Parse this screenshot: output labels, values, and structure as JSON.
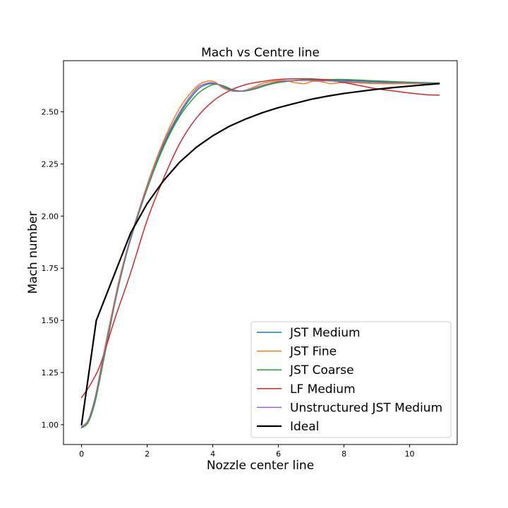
{
  "chart_data": {
    "type": "line",
    "title": "Mach vs Centre line",
    "xlabel": "Nozzle center line",
    "ylabel": "Mach number",
    "xlim": [
      -0.55,
      11.45
    ],
    "ylim": [
      0.905,
      2.745
    ],
    "xticks": [
      0,
      2,
      4,
      6,
      8,
      10
    ],
    "yticks": [
      1.0,
      1.25,
      1.5,
      1.75,
      2.0,
      2.25,
      2.5
    ],
    "ytick_labels": [
      "1.00",
      "1.25",
      "1.50",
      "1.75",
      "2.00",
      "2.25",
      "2.50"
    ],
    "grid": false,
    "legend_position": "lower-right",
    "series": [
      {
        "name": "JST Medium",
        "color": "#1f77b4",
        "width": 1.5,
        "x": [
          0,
          0.2,
          0.4,
          0.6,
          0.8,
          1.0,
          1.2,
          1.5,
          2.0,
          2.5,
          3.0,
          3.5,
          3.8,
          4.0,
          4.2,
          4.5,
          4.8,
          5.0,
          5.3,
          5.6,
          6.0,
          6.5,
          7.0,
          7.5,
          8.0,
          8.5,
          9.0,
          10.0,
          10.9
        ],
        "y": [
          0.99,
          1.02,
          1.12,
          1.27,
          1.43,
          1.58,
          1.72,
          1.9,
          2.14,
          2.34,
          2.49,
          2.6,
          2.63,
          2.635,
          2.63,
          2.61,
          2.6,
          2.6,
          2.615,
          2.63,
          2.64,
          2.65,
          2.652,
          2.652,
          2.65,
          2.648,
          2.645,
          2.64,
          2.636
        ]
      },
      {
        "name": "JST Fine",
        "color": "#ff7f0e",
        "width": 1.5,
        "x": [
          0,
          0.2,
          0.4,
          0.6,
          0.8,
          1.0,
          1.2,
          1.5,
          2.0,
          2.5,
          3.0,
          3.5,
          3.8,
          3.95,
          4.1,
          4.3,
          4.6,
          4.9,
          5.2,
          5.5,
          5.8,
          6.2,
          6.5,
          6.8,
          7.0,
          7.3,
          7.6,
          8.0,
          9.0,
          10.0,
          10.9
        ],
        "y": [
          0.99,
          1.02,
          1.12,
          1.28,
          1.44,
          1.59,
          1.73,
          1.9,
          2.15,
          2.36,
          2.52,
          2.62,
          2.645,
          2.648,
          2.64,
          2.615,
          2.6,
          2.6,
          2.615,
          2.635,
          2.645,
          2.65,
          2.64,
          2.635,
          2.645,
          2.645,
          2.635,
          2.64,
          2.635,
          2.635,
          2.635
        ]
      },
      {
        "name": "JST Coarse",
        "color": "#2ca02c",
        "width": 1.5,
        "x": [
          0,
          0.2,
          0.4,
          0.6,
          0.8,
          1.0,
          1.2,
          1.5,
          2.0,
          2.5,
          3.0,
          3.5,
          3.8,
          4.0,
          4.2,
          4.4,
          4.7,
          5.0,
          5.3,
          5.6,
          6.0,
          6.5,
          7.0,
          7.5,
          8.0,
          8.5,
          9.0,
          10.0,
          10.9
        ],
        "y": [
          0.985,
          1.01,
          1.1,
          1.25,
          1.41,
          1.57,
          1.71,
          1.89,
          2.13,
          2.33,
          2.48,
          2.58,
          2.615,
          2.63,
          2.63,
          2.62,
          2.6,
          2.6,
          2.61,
          2.625,
          2.64,
          2.65,
          2.655,
          2.655,
          2.655,
          2.652,
          2.648,
          2.642,
          2.638
        ]
      },
      {
        "name": "LF Medium",
        "color": "#d62728",
        "width": 1.5,
        "x": [
          0,
          0.3,
          0.6,
          1.0,
          1.5,
          2.0,
          2.5,
          3.0,
          3.5,
          4.0,
          4.5,
          5.0,
          5.5,
          6.0,
          6.5,
          7.0,
          7.5,
          8.0,
          8.5,
          9.0,
          9.5,
          10.0,
          10.5,
          10.9
        ],
        "y": [
          1.13,
          1.2,
          1.3,
          1.5,
          1.73,
          1.98,
          2.18,
          2.35,
          2.47,
          2.55,
          2.6,
          2.63,
          2.645,
          2.655,
          2.658,
          2.658,
          2.652,
          2.64,
          2.625,
          2.61,
          2.6,
          2.59,
          2.582,
          2.58
        ]
      },
      {
        "name": "Unstructured JST Medium",
        "color": "#9467bd",
        "width": 1.5,
        "x": [
          0,
          0.2,
          0.4,
          0.6,
          0.8,
          1.0,
          1.2,
          1.5,
          2.0,
          2.5,
          3.0,
          3.5,
          3.8,
          3.95,
          4.1,
          4.3,
          4.6,
          4.9,
          5.2,
          5.5,
          6.0,
          6.5,
          7.0,
          7.5,
          8.0,
          9.0,
          10.0,
          10.9
        ],
        "y": [
          0.99,
          1.02,
          1.12,
          1.27,
          1.43,
          1.58,
          1.72,
          1.9,
          2.14,
          2.35,
          2.5,
          2.61,
          2.635,
          2.64,
          2.635,
          2.62,
          2.6,
          2.6,
          2.61,
          2.625,
          2.645,
          2.65,
          2.65,
          2.648,
          2.645,
          2.64,
          2.638,
          2.635
        ]
      },
      {
        "name": "Ideal",
        "color": "#000000",
        "width": 2.2,
        "x": [
          0,
          0.45,
          1.5,
          2.0,
          2.5,
          3.0,
          3.5,
          4.0,
          4.5,
          5.0,
          5.5,
          6.0,
          6.5,
          7.0,
          7.5,
          8.0,
          8.5,
          9.0,
          9.5,
          10.0,
          10.5,
          10.9
        ],
        "y": [
          1.0,
          1.5,
          1.92,
          2.06,
          2.17,
          2.26,
          2.33,
          2.385,
          2.43,
          2.465,
          2.495,
          2.52,
          2.54,
          2.56,
          2.575,
          2.588,
          2.598,
          2.608,
          2.616,
          2.623,
          2.63,
          2.635
        ]
      }
    ]
  }
}
